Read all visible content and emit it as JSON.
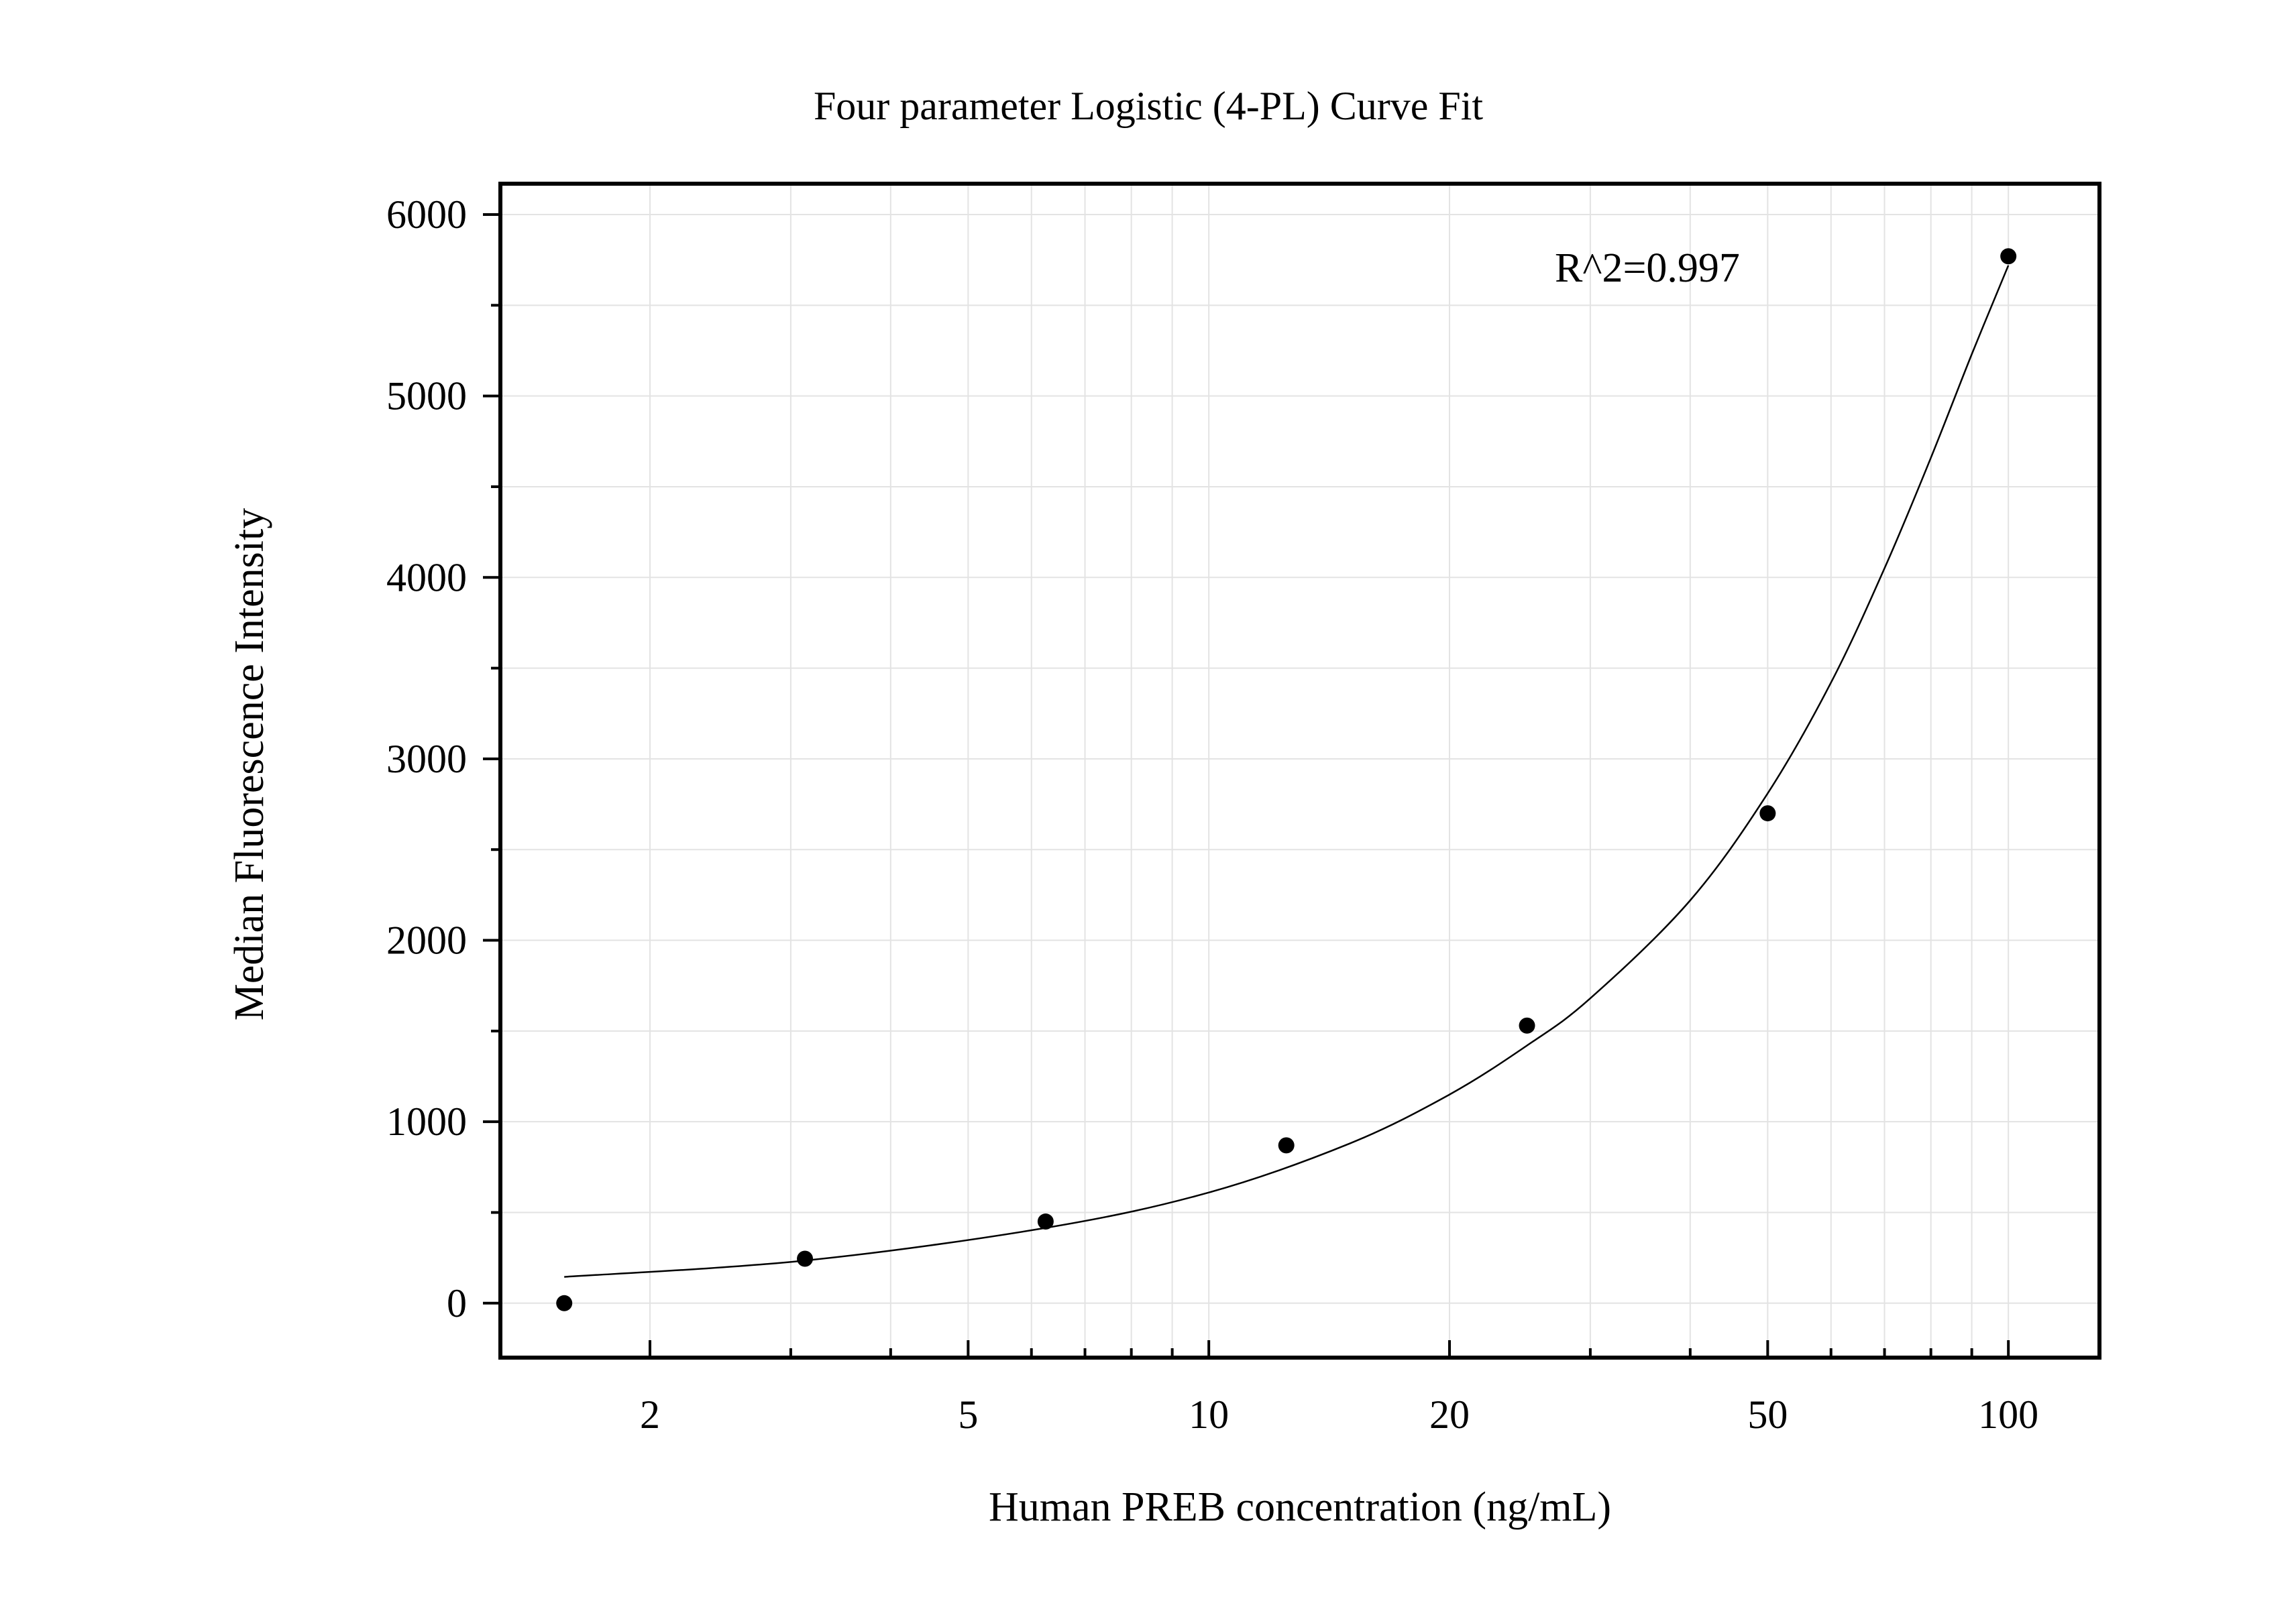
{
  "chart_data": {
    "type": "scatter",
    "title": "Four parameter Logistic (4-PL) Curve Fit",
    "xlabel": "Human PREB concentration (ng/mL)",
    "ylabel": "Median Fluorescence Intensity",
    "x_scale": "log",
    "xlim": [
      1.3,
      130
    ],
    "ylim": [
      -300,
      6170
    ],
    "x_ticks": [
      2,
      5,
      10,
      20,
      50,
      100
    ],
    "x_tick_labels": [
      "2",
      "5",
      "10",
      "20",
      "50",
      "100"
    ],
    "y_ticks": [
      0,
      1000,
      2000,
      3000,
      4000,
      5000,
      6000
    ],
    "y_tick_labels": [
      "0",
      "1000",
      "2000",
      "3000",
      "4000",
      "5000",
      "6000"
    ],
    "grid": true,
    "annotation": "R^2=0.997",
    "series": [
      {
        "points": [
          {
            "x": 1.5625,
            "y": 0
          },
          {
            "x": 3.125,
            "y": 245
          },
          {
            "x": 6.25,
            "y": 450
          },
          {
            "x": 12.5,
            "y": 870
          },
          {
            "x": 25,
            "y": 1530
          },
          {
            "x": 50,
            "y": 2700
          },
          {
            "x": 100,
            "y": 5770
          }
        ]
      }
    ],
    "fit_curve": {
      "points": [
        {
          "x": 1.5625,
          "y": 145
        },
        {
          "x": 3.125,
          "y": 235
        },
        {
          "x": 6.25,
          "y": 415
        },
        {
          "x": 10,
          "y": 610
        },
        {
          "x": 15,
          "y": 880
        },
        {
          "x": 20,
          "y": 1150
        },
        {
          "x": 25,
          "y": 1420
        },
        {
          "x": 30,
          "y": 1680
        },
        {
          "x": 40,
          "y": 2220
        },
        {
          "x": 50,
          "y": 2810
        },
        {
          "x": 60,
          "y": 3420
        },
        {
          "x": 70,
          "y": 4050
        },
        {
          "x": 80,
          "y": 4660
        },
        {
          "x": 90,
          "y": 5230
        },
        {
          "x": 100,
          "y": 5720
        }
      ]
    }
  }
}
